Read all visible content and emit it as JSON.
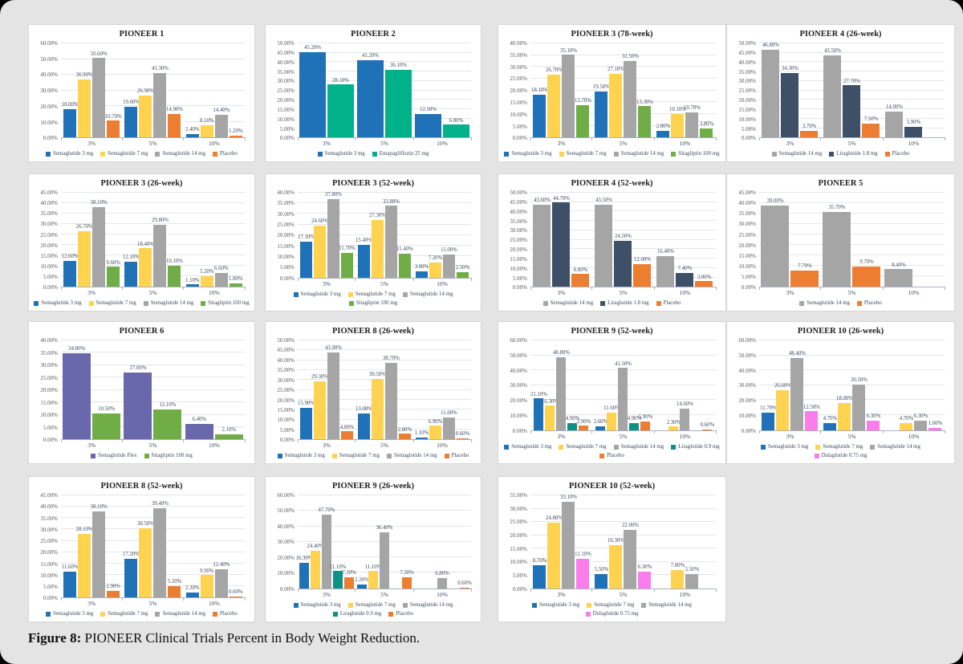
{
  "caption": {
    "label": "Figure 8:",
    "text": " PIONEER Clinical Trials Percent in Body Weight Reduction."
  },
  "categories": [
    "3%",
    "5%",
    "10%"
  ],
  "palette": {
    "semaglutide_3mg": "#1F72B8",
    "semaglutide_7mg": "#FFD24F",
    "semaglutide_14mg": "#A5A5A5",
    "placebo": "#ED7D31",
    "sitagliptin_100mg": "#70AD47",
    "emapagliflozin_25mg": "#00B189",
    "liraglutide_1_8mg": "#3E5067",
    "liraglutide_0_9mg": "#0D9287",
    "semaglutide_flex": "#6A68AC",
    "dulaglutide_0_75mg": "#FA7DEC"
  },
  "chart_data": [
    {
      "type": "bar",
      "title": "PIONEER 1",
      "ylim": [
        0,
        60
      ],
      "ystep": 10,
      "series": [
        {
          "name": "Semaglutide 3 mg",
          "color": "#1F72B8",
          "values": [
            18.0,
            19.6,
            2.4
          ]
        },
        {
          "name": "Semaglutide 7 mg",
          "color": "#FFD24F",
          "values": [
            36.9,
            26.9,
            8.1
          ]
        },
        {
          "name": "Semaglutide 14 mg",
          "color": "#A5A5A5",
          "values": [
            50.6,
            41.3,
            14.4
          ]
        },
        {
          "name": "Placebo",
          "color": "#ED7D31",
          "values": [
            10.7,
            14.9,
            1.2
          ]
        }
      ]
    },
    {
      "type": "bar",
      "title": "PIONEER 2",
      "ylim": [
        0,
        50
      ],
      "ystep": 5,
      "series": [
        {
          "name": "Semaglutide 3 mg",
          "color": "#1F72B8",
          "values": [
            45.2,
            41.2,
            12.5
          ]
        },
        {
          "name": "Emapagliflozin 25 mg",
          "color": "#00B189",
          "values": [
            28.1,
            36.1,
            6.8
          ]
        }
      ]
    },
    {
      "type": "bar",
      "title": "PIONEER 3 (78-week)",
      "ylim": [
        0,
        40
      ],
      "ystep": 5,
      "series": [
        {
          "name": "Semaglutide 3 mg",
          "color": "#1F72B8",
          "values": [
            18.1,
            19.5,
            2.8
          ]
        },
        {
          "name": "Semaglutide 7 mg",
          "color": "#FFD24F",
          "values": [
            26.7,
            27.1,
            10.1
          ]
        },
        {
          "name": "Semaglutide 14 mg",
          "color": "#A5A5A5",
          "values": [
            35.1,
            32.5,
            10.7
          ]
        },
        {
          "name": "Sitagliptin 100 mg",
          "color": "#70AD47",
          "values": [
            13.7,
            13.3,
            3.8
          ]
        }
      ]
    },
    {
      "type": "bar",
      "title": "PIONEER 4 (26-week)",
      "ylim": [
        0,
        50
      ],
      "ystep": 5,
      "series": [
        {
          "name": "Semaglutide 14 mg",
          "color": "#A5A5A5",
          "values": [
            46.8,
            43.5,
            14.0
          ]
        },
        {
          "name": "Liraglutide 1.8 mg",
          "color": "#3E5067",
          "values": [
            34.3,
            27.7,
            5.9
          ]
        },
        {
          "name": "Placebo",
          "color": "#ED7D31",
          "values": [
            3.7,
            7.5,
            null
          ]
        }
      ]
    },
    {
      "type": "bar",
      "title": "PIONEER 3 (26-week)",
      "ylim": [
        0,
        45
      ],
      "ystep": 5,
      "series": [
        {
          "name": "Semaglutide 3 mg",
          "color": "#1F72B8",
          "values": [
            12.6,
            12.1,
            1.1
          ]
        },
        {
          "name": "Semaglutide 7 mg",
          "color": "#FFD24F",
          "values": [
            26.7,
            18.4,
            5.2
          ]
        },
        {
          "name": "Semaglutide 14 mg",
          "color": "#A5A5A5",
          "values": [
            38.1,
            29.8,
            6.6
          ]
        },
        {
          "name": "Sitagliptin 100 mg",
          "color": "#70AD47",
          "values": [
            9.6,
            10.1,
            1.8
          ]
        }
      ]
    },
    {
      "type": "bar",
      "title": "PIONEER 3 (52-week)",
      "ylim": [
        0,
        40
      ],
      "ystep": 5,
      "series": [
        {
          "name": "Semaglutide 3 mg",
          "color": "#1F72B8",
          "values": [
            17.1,
            15.4,
            3.0
          ]
        },
        {
          "name": "Semaglutide 7 mg",
          "color": "#FFD24F",
          "values": [
            24.6,
            27.3,
            7.2
          ]
        },
        {
          "name": "Semaglutide 14 mg",
          "color": "#A5A5A5",
          "values": [
            37.8,
            33.8,
            11.0
          ]
        },
        {
          "name": "Sitagliptin 100 mg",
          "color": "#70AD47",
          "values": [
            11.7,
            11.4,
            2.5
          ]
        }
      ]
    },
    {
      "type": "bar",
      "title": "PIONEER 4 (52-week)",
      "ylim": [
        0,
        50
      ],
      "ystep": 5,
      "series": [
        {
          "name": "Semaglutide 14 mg",
          "color": "#A5A5A5",
          "values": [
            43.6,
            43.5,
            16.4
          ]
        },
        {
          "name": "Liraglutide 1.8 mg",
          "color": "#3E5067",
          "values": [
            44.7,
            24.5,
            7.4
          ]
        },
        {
          "name": "Placebo",
          "color": "#ED7D31",
          "values": [
            6.8,
            12.0,
            3.0
          ]
        }
      ]
    },
    {
      "type": "bar",
      "title": "PIONEER 5",
      "ylim": [
        0,
        45
      ],
      "ystep": 5,
      "series": [
        {
          "name": "Semaglutide 14 mg",
          "color": "#A5A5A5",
          "values": [
            39.0,
            35.7,
            8.4
          ]
        },
        {
          "name": "Placebo",
          "color": "#ED7D31",
          "values": [
            7.7,
            9.7,
            null
          ]
        }
      ]
    },
    {
      "type": "bar",
      "title": "PIONEER 6",
      "ylim": [
        0,
        40
      ],
      "ystep": 5,
      "series": [
        {
          "name": "Semaglutide Flex",
          "color": "#6A68AC",
          "values": [
            34.8,
            27.0,
            6.4
          ]
        },
        {
          "name": "Sitagliptin 100 mg",
          "color": "#70AD47",
          "values": [
            10.5,
            12.1,
            2.1
          ]
        }
      ]
    },
    {
      "type": "bar",
      "title": "PIONEER 8 (26-week)",
      "ylim": [
        0,
        50
      ],
      "ystep": 5,
      "series": [
        {
          "name": "Semaglutide 3 mg",
          "color": "#1F72B8",
          "values": [
            15.9,
            13.0,
            1.1
          ]
        },
        {
          "name": "Semaglutide 7 mg",
          "color": "#FFD24F",
          "values": [
            29.3,
            30.5,
            6.9
          ]
        },
        {
          "name": "Semaglutide 14 mg",
          "color": "#A5A5A5",
          "values": [
            43.9,
            38.7,
            11.0
          ]
        },
        {
          "name": "Placebo",
          "color": "#ED7D31",
          "values": [
            4.0,
            2.8,
            0.6
          ]
        }
      ]
    },
    {
      "type": "bar",
      "title": "PIONEER 9 (52-week)",
      "ylim": [
        0,
        60
      ],
      "ystep": 10,
      "series": [
        {
          "name": "Semaglutide 3 mg",
          "color": "#1F72B8",
          "values": [
            21.1,
            2.6,
            null
          ]
        },
        {
          "name": "Semaglutide 7 mg",
          "color": "#FFD24F",
          "values": [
            16.3,
            11.6,
            2.3
          ]
        },
        {
          "name": "Semaglutide 14 mg",
          "color": "#A5A5A5",
          "values": [
            48.8,
            41.5,
            14.6
          ]
        },
        {
          "name": "Liraglutide 0.9 mg",
          "color": "#0D9287",
          "values": [
            4.9,
            4.9,
            null
          ]
        },
        {
          "name": "Placebo",
          "color": "#ED7D31",
          "values": [
            2.9,
            5.9,
            0.6
          ]
        }
      ]
    },
    {
      "type": "bar",
      "title": "PIONEER 10 (26-week)",
      "ylim": [
        0,
        60
      ],
      "ystep": 10,
      "series": [
        {
          "name": "Semaglutide 3 mg",
          "color": "#1F72B8",
          "values": [
            11.7,
            4.7,
            null
          ]
        },
        {
          "name": "Semaglutide 7 mg",
          "color": "#FFD24F",
          "values": [
            26.6,
            18.0,
            4.7
          ]
        },
        {
          "name": "Semaglutide 14 mg",
          "color": "#A5A5A5",
          "values": [
            48.4,
            30.5,
            6.3
          ]
        },
        {
          "name": "Dulaglutide 0.75 mg",
          "color": "#FA7DEC",
          "values": [
            12.5,
            6.3,
            1.6
          ]
        }
      ]
    },
    {
      "type": "bar",
      "title": "PIONEER 8 (52-week)",
      "ylim": [
        0,
        45
      ],
      "ystep": 5,
      "series": [
        {
          "name": "Semaglutide 3 mg",
          "color": "#1F72B8",
          "values": [
            11.6,
            17.2,
            2.3
          ]
        },
        {
          "name": "Semaglutide 7 mg",
          "color": "#FFD24F",
          "values": [
            28.1,
            30.5,
            9.9
          ]
        },
        {
          "name": "Semaglutide 14 mg",
          "color": "#A5A5A5",
          "values": [
            38.1,
            39.4,
            12.4
          ]
        },
        {
          "name": "Placebo",
          "color": "#ED7D31",
          "values": [
            2.9,
            5.2,
            0.6
          ]
        }
      ]
    },
    {
      "type": "bar",
      "title": "PIONEER 9 (26-week)",
      "ylim": [
        0,
        60
      ],
      "ystep": 10,
      "series": [
        {
          "name": "Semaglutide 3 mg",
          "color": "#1F72B8",
          "values": [
            16.3,
            2.3,
            null
          ]
        },
        {
          "name": "Semaglutide 7 mg",
          "color": "#FFD24F",
          "values": [
            24.4,
            11.1,
            null
          ]
        },
        {
          "name": "Semaglutide 14 mg",
          "color": "#A5A5A5",
          "values": [
            47.7,
            36.4,
            6.8
          ]
        },
        {
          "name": "Liraglutide 0.9 mg",
          "color": "#0D9287",
          "values": [
            11.1,
            null,
            null
          ]
        },
        {
          "name": "Placebo",
          "color": "#ED7D31",
          "values": [
            7.3,
            7.3,
            0.6
          ]
        }
      ]
    },
    {
      "type": "bar",
      "title": "PIONEER 10 (52-week)",
      "ylim": [
        0,
        35
      ],
      "ystep": 5,
      "series": [
        {
          "name": "Semaglutide 3 mg",
          "color": "#1F72B8",
          "values": [
            8.7,
            5.5,
            null
          ]
        },
        {
          "name": "Semaglutide 7 mg",
          "color": "#FFD24F",
          "values": [
            24.8,
            16.3,
            7.0
          ]
        },
        {
          "name": "Semaglutide 14 mg",
          "color": "#A5A5A5",
          "values": [
            33.1,
            22.0,
            5.5
          ]
        },
        {
          "name": "Dulaglutide 0.75 mg",
          "color": "#FA7DEC",
          "values": [
            11.1,
            6.3,
            null
          ]
        }
      ]
    }
  ]
}
